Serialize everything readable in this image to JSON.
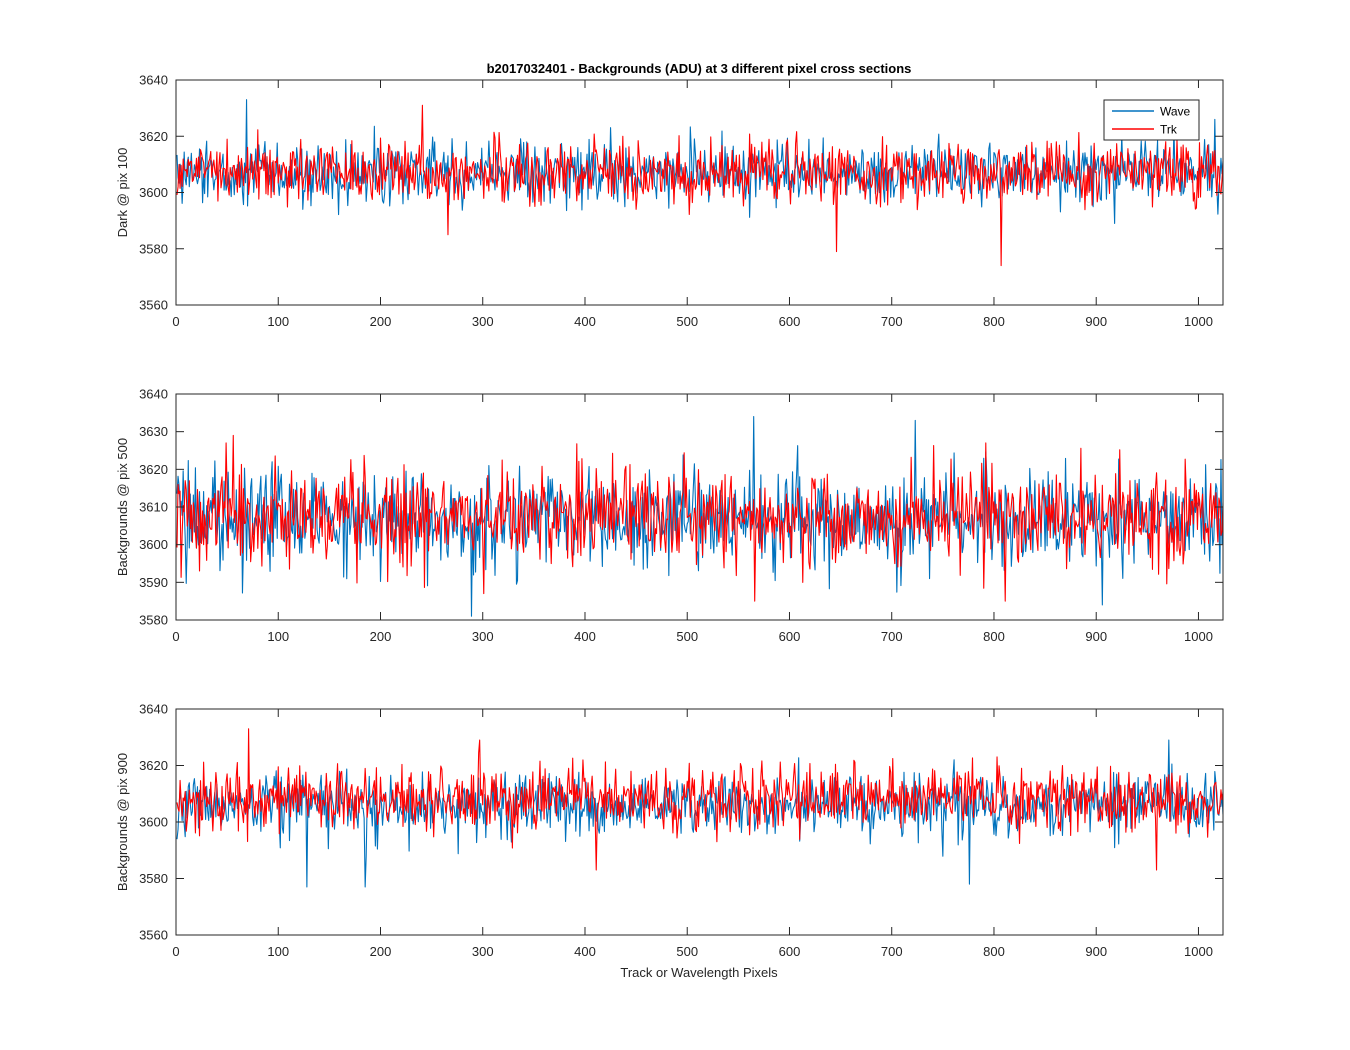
{
  "figure": {
    "title": "b2017032401 - Backgrounds (ADU) at 3 different pixel cross sections",
    "xlabel": "Track or Wavelength Pixels"
  },
  "colors": {
    "wave": "#0072bd",
    "trk": "#ff0000",
    "axes": "#262626",
    "background": "#ffffff"
  },
  "chart_data": [
    {
      "type": "line",
      "ylabel": "Dark @ pix 100",
      "xlim": [
        0,
        1024
      ],
      "ylim": [
        3560,
        3640
      ],
      "xticks": [
        0,
        100,
        200,
        300,
        400,
        500,
        600,
        700,
        800,
        900,
        1000
      ],
      "yticks": [
        3560,
        3580,
        3600,
        3620,
        3640
      ],
      "legend": {
        "location": "top-right",
        "entries": [
          "Wave",
          "Trk"
        ]
      },
      "noise_seed": 11,
      "series": [
        {
          "name": "Wave",
          "color": "#0072bd",
          "n_points": 1024,
          "mean": 3607,
          "spread": 5.5,
          "min": 3587,
          "max": 3633,
          "spikes": [
            [
              68,
              3633
            ],
            [
              1015,
              3626
            ]
          ]
        },
        {
          "name": "Trk",
          "color": "#ff0000",
          "n_points": 1024,
          "mean": 3607,
          "spread": 5.5,
          "min": 3574,
          "max": 3631,
          "spikes": [
            [
              645,
              3579
            ],
            [
              806,
              3574
            ],
            [
              240,
              3631
            ],
            [
              265,
              3585
            ]
          ]
        }
      ]
    },
    {
      "type": "line",
      "ylabel": "Backgrounds @ pix 500",
      "xlim": [
        0,
        1024
      ],
      "ylim": [
        3580,
        3640
      ],
      "xticks": [
        0,
        100,
        200,
        300,
        400,
        500,
        600,
        700,
        800,
        900,
        1000
      ],
      "yticks": [
        3580,
        3590,
        3600,
        3610,
        3620,
        3630,
        3640
      ],
      "noise_seed": 23,
      "series": [
        {
          "name": "Wave",
          "color": "#0072bd",
          "n_points": 1024,
          "mean": 3607,
          "spread": 6.5,
          "min": 3581,
          "max": 3634,
          "spikes": [
            [
              288,
              3581
            ],
            [
              564,
              3634
            ],
            [
              722,
              3633
            ],
            [
              905,
              3584
            ]
          ]
        },
        {
          "name": "Trk",
          "color": "#ff0000",
          "n_points": 1024,
          "mean": 3607,
          "spread": 6.5,
          "min": 3585,
          "max": 3629,
          "spikes": [
            [
              55,
              3629
            ],
            [
              565,
              3585
            ],
            [
              810,
              3585
            ],
            [
              300,
              3587
            ]
          ]
        }
      ]
    },
    {
      "type": "line",
      "ylabel": "Backgrounds @ pix 900",
      "xlim": [
        0,
        1024
      ],
      "ylim": [
        3560,
        3640
      ],
      "xticks": [
        0,
        100,
        200,
        300,
        400,
        500,
        600,
        700,
        800,
        900,
        1000
      ],
      "yticks": [
        3560,
        3580,
        3600,
        3620,
        3640
      ],
      "noise_seed": 37,
      "series": [
        {
          "name": "Wave",
          "color": "#0072bd",
          "n_points": 1024,
          "mean": 3606,
          "spread": 5.5,
          "min": 3577,
          "max": 3629,
          "spikes": [
            [
              127,
              3577
            ],
            [
              184,
              3577
            ],
            [
              775,
              3578
            ],
            [
              970,
              3629
            ]
          ]
        },
        {
          "name": "Trk",
          "color": "#ff0000",
          "n_points": 1024,
          "mean": 3608,
          "spread": 5.5,
          "min": 3583,
          "max": 3633,
          "spikes": [
            [
              70,
              3633
            ],
            [
              296,
              3629
            ],
            [
              410,
              3583
            ],
            [
              958,
              3583
            ]
          ]
        }
      ]
    }
  ]
}
